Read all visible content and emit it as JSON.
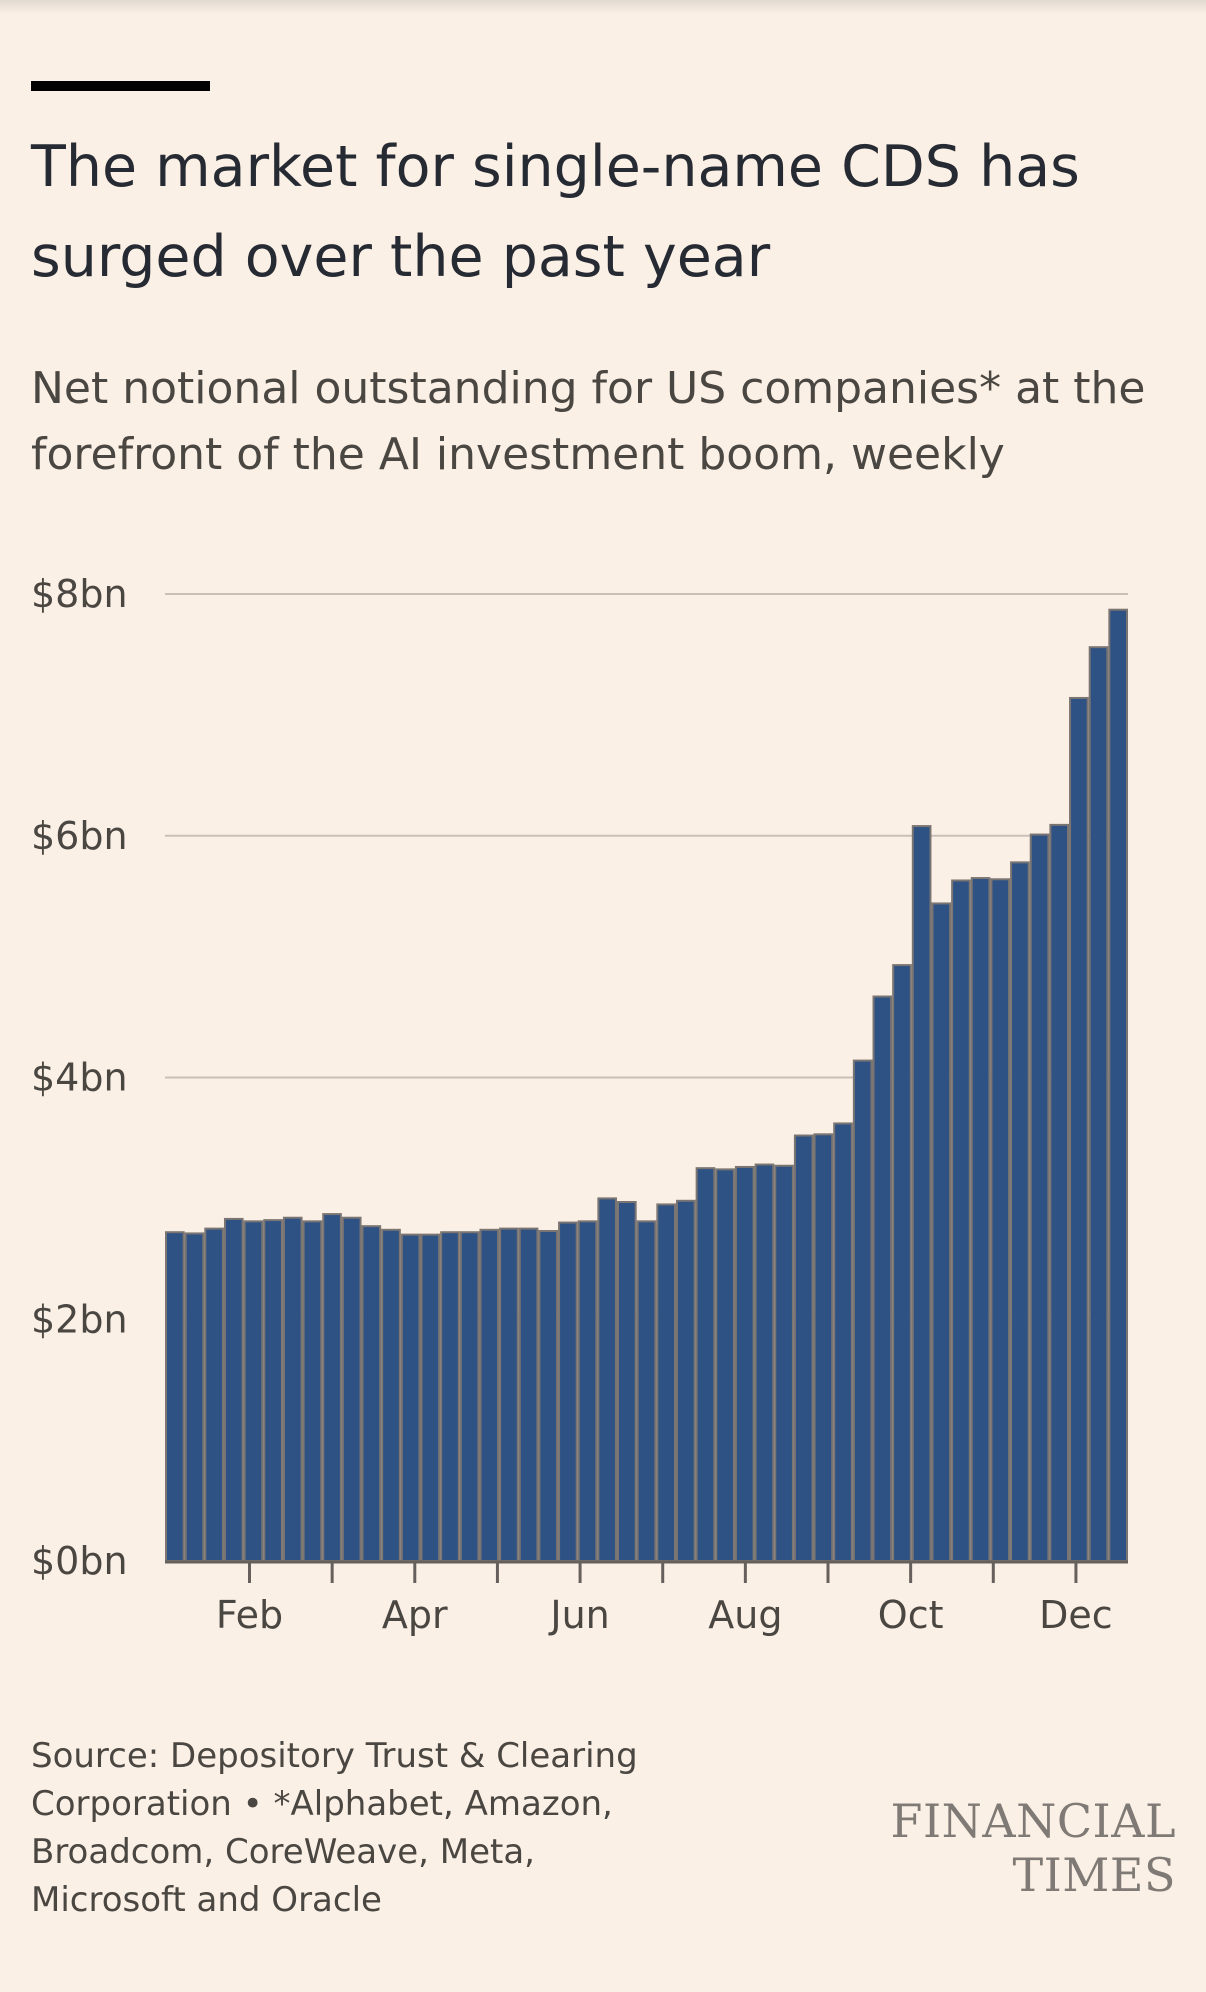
{
  "header": {
    "title": "The market for single-name CDS has surged over the past year",
    "subtitle": "Net notional outstanding for US companies* at the forefront of the AI investment boom, weekly"
  },
  "footer": {
    "source": "Source: Depository Trust & Clearing Corporation • *Alphabet, Amazon, Broadcom, CoreWeave, Meta, Microsoft and Oracle",
    "logo_text": "FINANCIAL TIMES"
  },
  "colors": {
    "background": "#fbf0e6",
    "bar": "#2f5284",
    "bar_outline": "#7a7572",
    "gridline": "#c9c0b7",
    "axis": "#66605c"
  },
  "chart_data": {
    "type": "bar",
    "title": "The market for single-name CDS has surged over the past year",
    "subtitle": "Net notional outstanding for US companies* at the forefront of the AI investment boom, weekly",
    "ylabel": "",
    "xlabel": "",
    "unit": "$bn",
    "ylim": [
      0,
      8
    ],
    "yticks": [
      0,
      2,
      4,
      6,
      8
    ],
    "ytick_labels": [
      "$0bn",
      "$2bn",
      "$4bn",
      "$6bn",
      "$8bn"
    ],
    "xtick_labels": [
      "Feb",
      "Apr",
      "Jun",
      "Aug",
      "Oct",
      "Dec"
    ],
    "grid": true,
    "legend": "none",
    "series": [
      {
        "values": [
          2.72,
          2.71,
          2.75,
          2.83,
          2.81,
          2.82,
          2.84,
          2.81,
          2.87,
          2.84,
          2.77,
          2.74,
          2.7,
          2.7,
          2.72,
          2.72,
          2.74,
          2.75,
          2.75,
          2.73,
          2.8,
          2.81,
          3.0,
          2.97,
          2.81,
          2.95,
          2.98,
          3.25,
          3.24,
          3.26,
          3.28,
          3.27,
          3.52,
          3.53,
          3.62,
          4.14,
          4.67,
          4.93,
          6.08,
          5.44,
          5.63,
          5.65,
          5.64,
          5.78,
          6.01,
          6.09,
          7.14,
          7.56,
          7.87
        ]
      }
    ]
  }
}
